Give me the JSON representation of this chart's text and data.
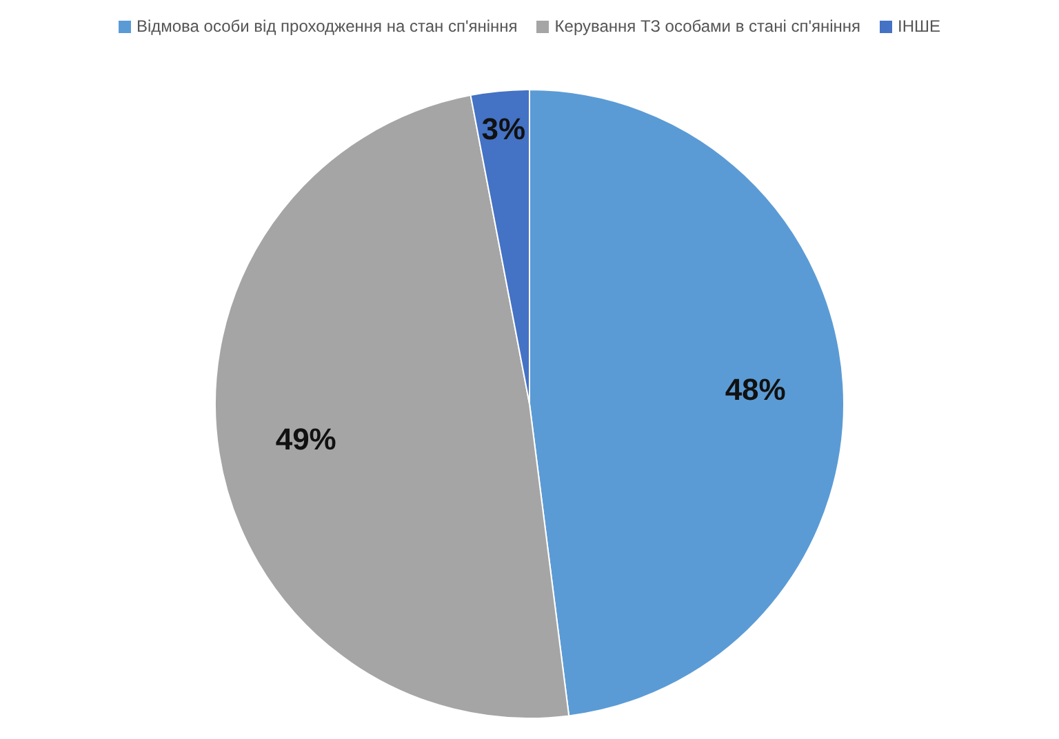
{
  "chart_data": {
    "type": "pie",
    "categories": [
      "Відмова особи від проходження на стан сп'яніння",
      "Керування ТЗ особами в стані сп'яніння",
      "ІНШЕ"
    ],
    "values": [
      48,
      49,
      3
    ],
    "colors": [
      "#5b9bd5",
      "#a5a5a5",
      "#4472c4"
    ],
    "value_labels": [
      "48%",
      "49%",
      "3%"
    ],
    "legend": "top"
  }
}
